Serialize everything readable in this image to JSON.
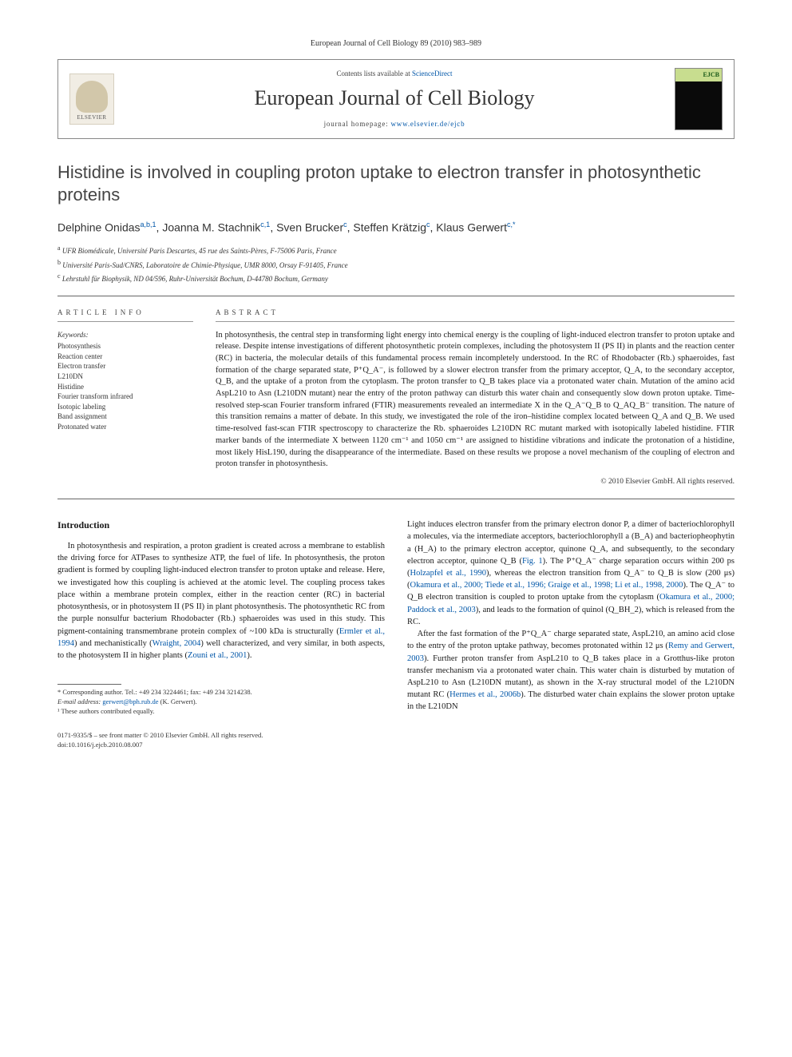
{
  "journal_ref": "European Journal of Cell Biology 89 (2010) 983–989",
  "header": {
    "contents_prefix": "Contents lists available at ",
    "contents_link": "ScienceDirect",
    "journal_name": "European Journal of Cell Biology",
    "homepage_prefix": "journal homepage: ",
    "homepage_url": "www.elsevier.de/ejcb",
    "elsevier": "ELSEVIER",
    "cover_abbrev": "EJCB"
  },
  "title": "Histidine is involved in coupling proton uptake to electron transfer in photosynthetic proteins",
  "authors_html": "Delphine Onidas<sup>a,b,1</sup>, Joanna M. Stachnik<sup>c,1</sup>, Sven Brucker<sup>c</sup>, Steffen Krätzig<sup>c</sup>, Klaus Gerwert<sup>c,*</sup>",
  "affiliations": [
    {
      "sup": "a",
      "text": "UFR Biomédicale, Université Paris Descartes, 45 rue des Saints-Pères, F-75006 Paris, France"
    },
    {
      "sup": "b",
      "text": "Université Paris-Sud/CNRS, Laboratoire de Chimie-Physique, UMR 8000, Orsay F-91405, France"
    },
    {
      "sup": "c",
      "text": "Lehrstuhl für Biophysik, ND 04/596, Ruhr-Universität Bochum, D-44780 Bochum, Germany"
    }
  ],
  "article_info_label": "ARTICLE INFO",
  "abstract_label": "ABSTRACT",
  "keywords_head": "Keywords:",
  "keywords": [
    "Photosynthesis",
    "Reaction center",
    "Electron transfer",
    "L210DN",
    "Histidine",
    "Fourier transform infrared",
    "Isotopic labeling",
    "Band assignment",
    "Protonated water"
  ],
  "abstract": "In photosynthesis, the central step in transforming light energy into chemical energy is the coupling of light-induced electron transfer to proton uptake and release. Despite intense investigations of different photosynthetic protein complexes, including the photosystem II (PS II) in plants and the reaction center (RC) in bacteria, the molecular details of this fundamental process remain incompletely understood. In the RC of Rhodobacter (Rb.) sphaeroides, fast formation of the charge separated state, P⁺Q_A⁻, is followed by a slower electron transfer from the primary acceptor, Q_A, to the secondary acceptor, Q_B, and the uptake of a proton from the cytoplasm. The proton transfer to Q_B takes place via a protonated water chain. Mutation of the amino acid AspL210 to Asn (L210DN mutant) near the entry of the proton pathway can disturb this water chain and consequently slow down proton uptake. Time-resolved step-scan Fourier transform infrared (FTIR) measurements revealed an intermediate X in the Q_A⁻Q_B to Q_AQ_B⁻ transition. The nature of this transition remains a matter of debate. In this study, we investigated the role of the iron–histidine complex located between Q_A and Q_B. We used time-resolved fast-scan FTIR spectroscopy to characterize the Rb. sphaeroides L210DN RC mutant marked with isotopically labeled histidine. FTIR marker bands of the intermediate X between 1120 cm⁻¹ and 1050 cm⁻¹ are assigned to histidine vibrations and indicate the protonation of a histidine, most likely HisL190, during the disappearance of the intermediate. Based on these results we propose a novel mechanism of the coupling of electron and proton transfer in photosynthesis.",
  "copyright": "© 2010 Elsevier GmbH. All rights reserved.",
  "intro_heading": "Introduction",
  "intro_col1": "In photosynthesis and respiration, a proton gradient is created across a membrane to establish the driving force for ATPases to synthesize ATP, the fuel of life. In photosynthesis, the proton gradient is formed by coupling light-induced electron transfer to proton uptake and release. Here, we investigated how this coupling is achieved at the atomic level. The coupling process takes place within a membrane protein complex, either in the reaction center (RC) in bacterial photosynthesis, or in photosystem II (PS II) in plant photosynthesis. The photosynthetic RC from the purple nonsulfur bacterium Rhodobacter (Rb.) sphaeroides was used in this study. This pigment-containing transmembrane protein complex of ~100 kDa is structurally (<span class=\"ref\">Ermler et al., 1994</span>) and mechanistically (<span class=\"ref\">Wraight, 2004</span>) well characterized, and very similar, in both aspects, to the photosystem II in higher plants (<span class=\"ref\">Zouni et al., 2001</span>).",
  "intro_col2_p1": "Light induces electron transfer from the primary electron donor P, a dimer of bacteriochlorophyll a molecules, via the intermediate acceptors, bacteriochlorophyll a (B_A) and bacteriopheophytin a (H_A) to the primary electron acceptor, quinone Q_A, and subsequently, to the secondary electron acceptor, quinone Q_B (<span class=\"ref\">Fig. 1</span>). The P⁺Q_A⁻ charge separation occurs within 200 ps (<span class=\"ref\">Holzapfel et al., 1990</span>), whereas the electron transition from Q_A⁻ to Q_B is slow (200 μs) (<span class=\"ref\">Okamura et al., 2000; Tiede et al., 1996; Graige et al., 1998; Li et al., 1998, 2000</span>). The Q_A⁻ to Q_B electron transition is coupled to proton uptake from the cytoplasm (<span class=\"ref\">Okamura et al., 2000; Paddock et al., 2003</span>), and leads to the formation of quinol (Q_BH_2), which is released from the RC.",
  "intro_col2_p2": "After the fast formation of the P⁺Q_A⁻ charge separated state, AspL210, an amino acid close to the entry of the proton uptake pathway, becomes protonated within 12 μs (<span class=\"ref\">Remy and Gerwert, 2003</span>). Further proton transfer from AspL210 to Q_B takes place in a Grotthus-like proton transfer mechanism via a protonated water chain. This water chain is disturbed by mutation of AspL210 to Asn (L210DN mutant), as shown in the X-ray structural model of the L210DN mutant RC (<span class=\"ref\">Hermes et al., 2006b</span>). The disturbed water chain explains the slower proton uptake in the L210DN",
  "footnotes": {
    "corr": "* Corresponding author. Tel.: +49 234 3224461; fax: +49 234 3214238.",
    "email_label": "E-mail address: ",
    "email": "gerwert@bph.rub.de",
    "email_suffix": " (K. Gerwert).",
    "equal": "¹ These authors contributed equally."
  },
  "bottom": {
    "line1": "0171-9335/$ – see front matter © 2010 Elsevier GmbH. All rights reserved.",
    "doi": "doi:10.1016/j.ejcb.2010.08.007"
  },
  "colors": {
    "link": "#0056a8",
    "text": "#1a1a1a",
    "rule": "#666666"
  }
}
